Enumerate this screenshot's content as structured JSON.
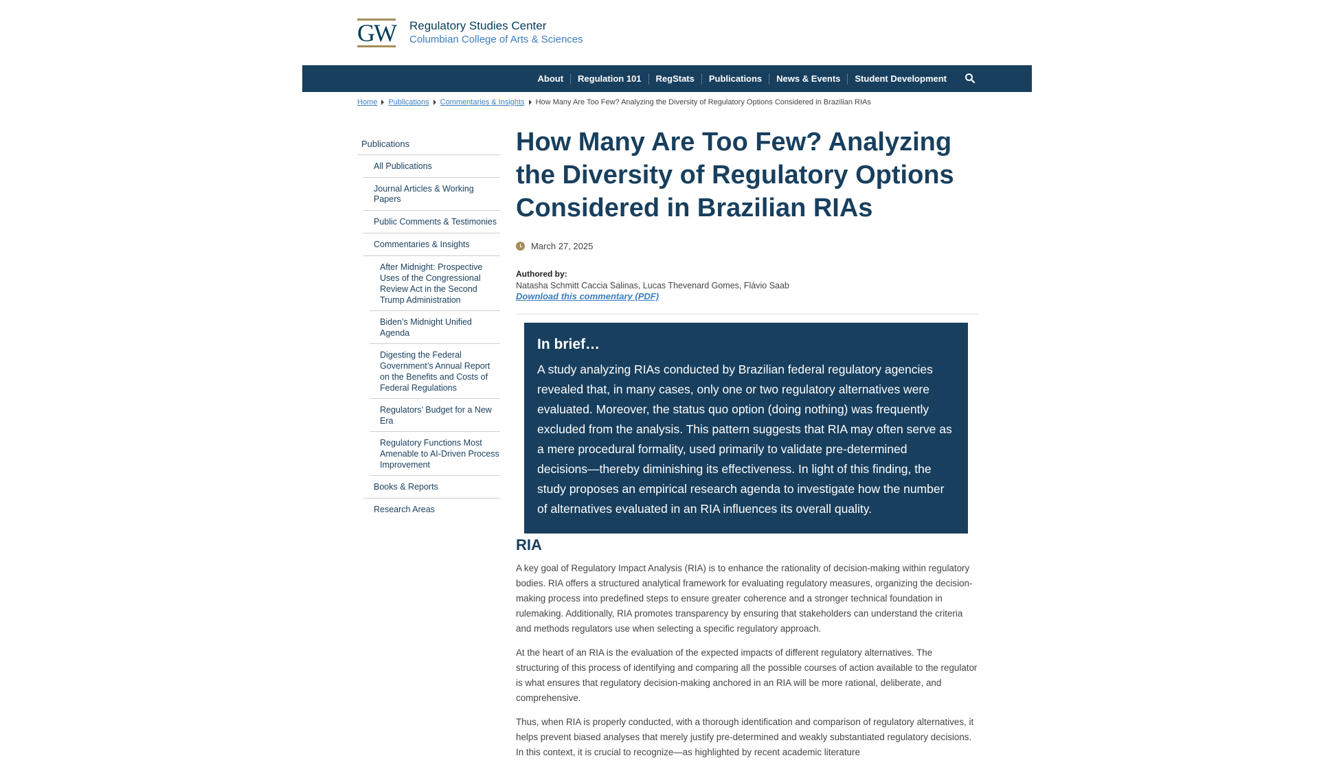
{
  "header": {
    "logo_text": "GW",
    "org_name": "Regulatory Studies Center",
    "org_sub": "Columbian College of Arts & Sciences"
  },
  "nav": {
    "items": [
      "About",
      "Regulation 101",
      "RegStats",
      "Publications",
      "News & Events",
      "Student Development"
    ],
    "search_icon": "search-icon"
  },
  "breadcrumb": {
    "links": [
      "Home",
      "Publications",
      "Commentaries & Insights"
    ],
    "current": "How Many Are Too Few? Analyzing the Diversity of Regulatory Options Considered in Brazilian RIAs"
  },
  "sidebar": {
    "heading": "Publications",
    "items": [
      "All Publications",
      "Journal Articles & Working Papers",
      "Public Comments & Testimonies",
      "Commentaries & Insights"
    ],
    "subitems": [
      "After Midnight: Prospective Uses of the Congressional Review Act in the Second Trump Administration",
      "Biden’s Midnight Unified Agenda",
      "Digesting the Federal Government’s Annual Report on the Benefits and Costs of Federal Regulations",
      "Regulators’ Budget for a New Era",
      "Regulatory Functions Most Amenable to AI-Driven Process Improvement"
    ],
    "items_after": [
      "Books & Reports",
      "Research Areas"
    ]
  },
  "article": {
    "title": "How Many Are Too Few? Analyzing the Diversity of Regulatory Options Considered in Brazilian RIAs",
    "date": "March 27, 2025",
    "authored_label": "Authored by:",
    "authors": "Natasha Schmitt Caccia Salinas, Lucas Thevenard Gomes, Flávio Saab",
    "pdf_link": "Download this commentary (PDF)",
    "brief_title": "In brief…",
    "brief_text": "A study analyzing RIAs conducted by Brazilian federal regulatory agencies revealed that, in many cases, only one or two regulatory alternatives were evaluated. Moreover, the status quo option (doing nothing) was frequently excluded from the analysis. This pattern suggests that RIA may often serve as a mere procedural formality, used primarily to validate pre-determined decisions—thereby diminishing its effectiveness. In light of this finding, the study proposes an empirical research agenda to investigate how the number of alternatives evaluated in an RIA influences its overall quality.",
    "section_title": "RIA",
    "paragraphs": [
      "A key goal of Regulatory Impact Analysis (RIA) is to enhance the rationality of decision-making within regulatory bodies. RIA offers a structured analytical framework for evaluating regulatory measures, organizing the decision-making process into predefined steps to ensure greater coherence and a stronger technical foundation in rulemaking. Additionally, RIA promotes transparency by ensuring that stakeholders can understand the criteria and methods regulators use when selecting a specific regulatory approach.",
      "At the heart of an RIA is the evaluation of the expected impacts of different regulatory alternatives. The structuring of this process of identifying and comparing all the possible courses of action available to the regulator is what ensures that regulatory decision-making anchored in an RIA will be more rational, deliberate, and comprehensive.",
      "Thus, when RIA is properly conducted, with a thorough identification and comparison of regulatory alternatives, it helps prevent biased analyses that merely justify pre-determined and weakly substantiated regulatory decisions. In this context, it is crucial to recognize—as highlighted by recent academic literature"
    ]
  },
  "colors": {
    "navy": "#183f5e",
    "gold": "#a58d5b",
    "link": "#3b7dbf"
  }
}
